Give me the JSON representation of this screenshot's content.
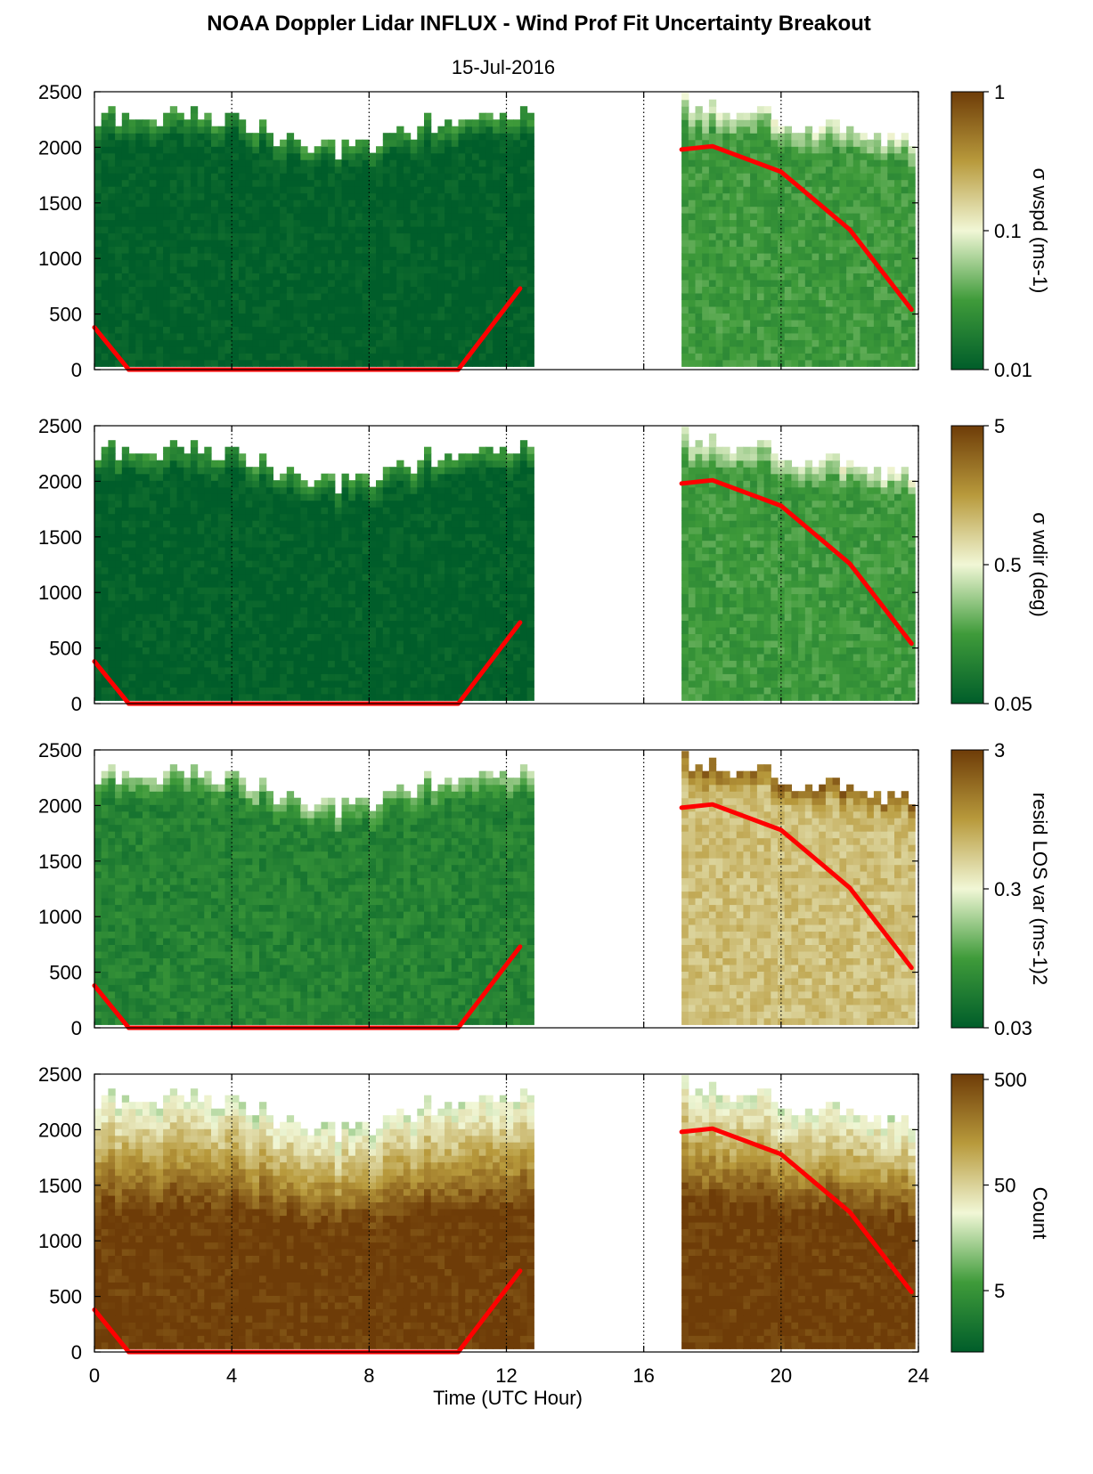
{
  "title": "NOAA Doppler Lidar INFLUX - Wind Prof Fit Uncertainty Breakout",
  "subtitle": "15-Jul-2016",
  "xlabel": "Time (UTC Hour)",
  "colors": {
    "low": "#005d2a",
    "mid": "#f1f7d6",
    "high": "#6e3c08",
    "boundary_layer_line": "#ff0000",
    "missing": "#ffffff"
  },
  "chart_data": [
    {
      "type": "heatmap",
      "ylabel": "",
      "colorbar_label": "σ wspd (ms-1)",
      "colorbar_scale": "log",
      "colorbar_range": [
        0.01,
        1
      ],
      "colorbar_ticks": [
        "1",
        "0.1",
        "0.01"
      ],
      "xlim": [
        0,
        24
      ],
      "ylim": [
        0,
        2500
      ],
      "x_ticks": [
        0,
        4,
        8,
        12,
        16,
        20,
        24
      ],
      "y_ticks": [
        0,
        500,
        1000,
        1500,
        2000,
        2500
      ],
      "data_periods_utc_hour": [
        [
          0,
          12.7
        ],
        [
          17.1,
          23.8
        ]
      ],
      "typical_value_by_period": [
        0.01,
        0.03
      ],
      "boundary_layer_height_m": {
        "x": [
          0,
          1,
          10.6,
          12.4,
          17.1,
          18,
          20,
          22,
          23.8
        ],
        "y": [
          380,
          0,
          0,
          730,
          1980,
          2010,
          1780,
          1260,
          540
        ]
      }
    },
    {
      "type": "heatmap",
      "ylabel": "",
      "colorbar_label": "σ wdir (deg)",
      "colorbar_scale": "log",
      "colorbar_range": [
        0.05,
        5
      ],
      "colorbar_ticks": [
        "5",
        "0.5",
        "0.05"
      ],
      "xlim": [
        0,
        24
      ],
      "ylim": [
        0,
        2500
      ],
      "x_ticks": [
        0,
        4,
        8,
        12,
        16,
        20,
        24
      ],
      "y_ticks": [
        0,
        500,
        1000,
        1500,
        2000,
        2500
      ],
      "data_periods_utc_hour": [
        [
          0,
          12.7
        ],
        [
          17.1,
          23.8
        ]
      ],
      "typical_value_by_period": [
        0.05,
        0.15
      ],
      "boundary_layer_height_m": {
        "x": [
          0,
          1,
          10.6,
          12.4,
          17.1,
          18,
          20,
          22,
          23.8
        ],
        "y": [
          380,
          0,
          0,
          730,
          1980,
          2010,
          1780,
          1260,
          540
        ]
      }
    },
    {
      "type": "heatmap",
      "ylabel": "",
      "colorbar_label": "resid LOS var (ms-1)2",
      "colorbar_scale": "log",
      "colorbar_range": [
        0.03,
        3
      ],
      "colorbar_ticks": [
        "3",
        "0.3",
        "0.03"
      ],
      "xlim": [
        0,
        24
      ],
      "ylim": [
        0,
        2500
      ],
      "x_ticks": [
        0,
        4,
        8,
        12,
        16,
        20,
        24
      ],
      "y_ticks": [
        0,
        500,
        1000,
        1500,
        2000,
        2500
      ],
      "data_periods_utc_hour": [
        [
          0,
          12.7
        ],
        [
          17.1,
          23.8
        ]
      ],
      "typical_value_by_period": [
        0.06,
        0.6
      ],
      "boundary_layer_height_m": {
        "x": [
          0,
          1,
          10.6,
          12.4,
          17.1,
          18,
          20,
          22,
          23.8
        ],
        "y": [
          380,
          0,
          0,
          730,
          1980,
          2010,
          1780,
          1260,
          540
        ]
      }
    },
    {
      "type": "heatmap",
      "ylabel": "",
      "colorbar_label": "Count",
      "colorbar_scale": "log",
      "colorbar_range": [
        1,
        500
      ],
      "colorbar_ticks": [
        "500",
        "50",
        "5"
      ],
      "xlim": [
        0,
        24
      ],
      "ylim": [
        0,
        2500
      ],
      "x_ticks": [
        0,
        4,
        8,
        12,
        16,
        20,
        24
      ],
      "y_ticks": [
        0,
        500,
        1000,
        1500,
        2000,
        2500
      ],
      "data_periods_utc_hour": [
        [
          0,
          12.7
        ],
        [
          17.1,
          23.8
        ]
      ],
      "typical_value_by_period": [
        400,
        500
      ],
      "boundary_layer_height_m": {
        "x": [
          0,
          1,
          10.6,
          12.4,
          17.1,
          18,
          20,
          22,
          23.8
        ],
        "y": [
          380,
          0,
          0,
          730,
          1980,
          2010,
          1780,
          1260,
          540
        ]
      }
    }
  ]
}
